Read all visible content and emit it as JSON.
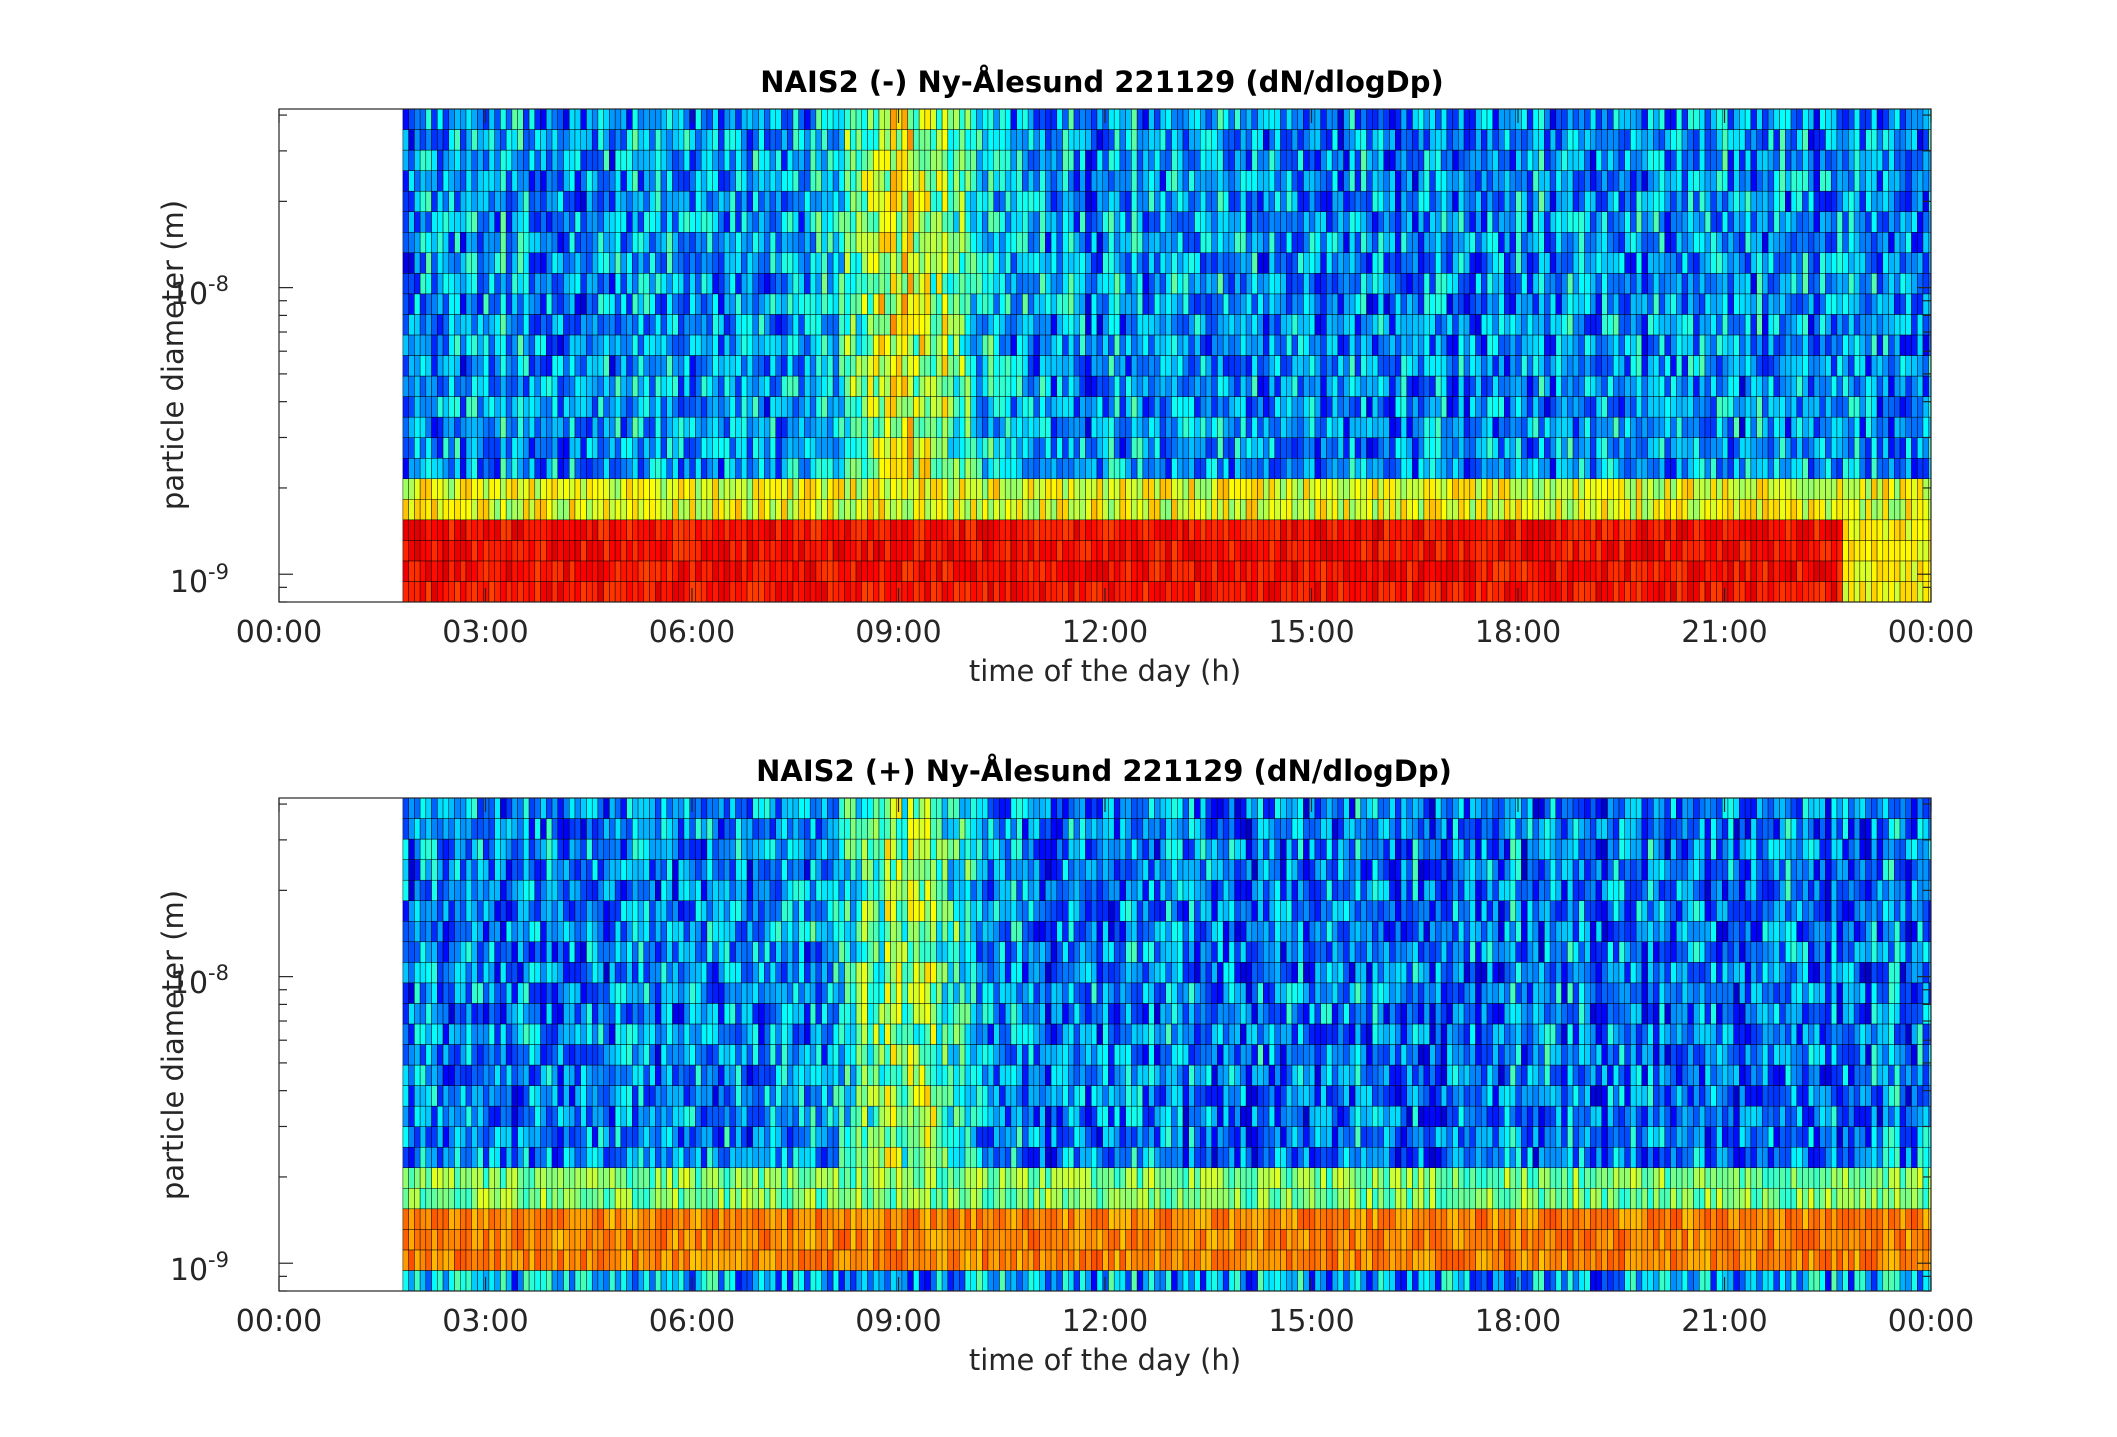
{
  "chart_data": [
    {
      "type": "heatmap",
      "title": "NAIS2 (-) Ny-Ålesund 221129 (dN/dlogDp)",
      "xlabel": "time of the day (h)",
      "ylabel": "particle diameter (m)",
      "x_tick_labels": [
        "00:00",
        "03:00",
        "06:00",
        "09:00",
        "12:00",
        "15:00",
        "18:00",
        "21:00",
        "00:00"
      ],
      "x_ticks_hours": [
        0,
        3,
        6,
        9,
        12,
        15,
        18,
        21,
        24
      ],
      "xlim_hours": [
        0,
        24
      ],
      "y_tick_labels": [
        {
          "base": "10",
          "exp": "-9"
        },
        {
          "base": "10",
          "exp": "-8"
        }
      ],
      "y_ticks_m": [
        1e-09,
        1e-08
      ],
      "ylim_m": [
        8e-10,
        4.2e-08
      ],
      "yscale": "log",
      "data_start_hour": 1.8,
      "colormap": "jet",
      "mode": "negative",
      "approx_pattern": "Strong red band near 1e-9 m across the day (ions), mostly blue/cyan at larger sizes with a greener/yellow episode around 08:00-10:30."
    },
    {
      "type": "heatmap",
      "title": "NAIS2 (+) Ny-Ålesund 221129 (dN/dlogDp)",
      "xlabel": "time of the day (h)",
      "ylabel": "particle diameter (m)",
      "x_tick_labels": [
        "00:00",
        "03:00",
        "06:00",
        "09:00",
        "12:00",
        "15:00",
        "18:00",
        "21:00",
        "00:00"
      ],
      "x_ticks_hours": [
        0,
        3,
        6,
        9,
        12,
        15,
        18,
        21,
        24
      ],
      "xlim_hours": [
        0,
        24
      ],
      "y_tick_labels": [
        {
          "base": "10",
          "exp": "-9"
        },
        {
          "base": "10",
          "exp": "-8"
        }
      ],
      "y_ticks_m": [
        1e-09,
        1e-08
      ],
      "ylim_m": [
        8e-10,
        4.2e-08
      ],
      "yscale": "log",
      "data_start_hour": 1.8,
      "colormap": "jet",
      "mode": "positive",
      "approx_pattern": "Orange/yellow band around 1.1-1.6e-9 m, dark blue row at the smallest sizes, blue/cyan above with a lighter episode near 09:00."
    }
  ]
}
